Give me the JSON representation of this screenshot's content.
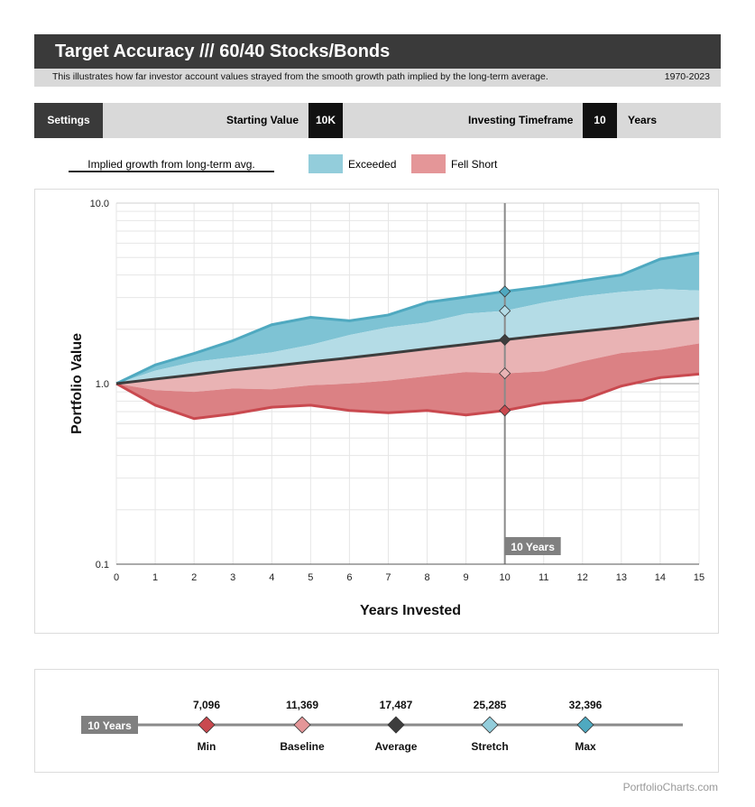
{
  "header": {
    "title": "Target Accuracy /// 60/40 Stocks/Bonds",
    "description": "This illustrates how far investor account values strayed from the smooth growth path implied by the long-term average.",
    "date_range": "1970-2023"
  },
  "settings": {
    "button_label": "Settings",
    "starting_value_label": "Starting Value",
    "starting_value": "10K",
    "timeframe_label": "Investing Timeframe",
    "timeframe_value": "10",
    "timeframe_unit": "Years"
  },
  "legend": {
    "line_label": "Implied growth from long-term avg.",
    "exceeded_label": "Exceeded",
    "fell_short_label": "Fell Short"
  },
  "colors": {
    "exceeded": "#93cddb",
    "fell_short": "#e49698",
    "max_fill": "#7ec3d4",
    "stretch_fill": "#b4dce6",
    "baseline_fill": "#e9b3b4",
    "min_fill": "#db8184",
    "max_line": "#4fa9c0",
    "min_line": "#c9494f",
    "average_line": "#3d3d3d",
    "marker_line": "#8a8a8a"
  },
  "chart_data": {
    "type": "area",
    "title": "",
    "xlabel": "Years Invested",
    "ylabel": "Portfolio Value",
    "yscale": "log",
    "ylim": [
      0.1,
      10.0
    ],
    "y_ticks": [
      "10.0",
      "1.0",
      "0.1"
    ],
    "x": [
      0,
      1,
      2,
      3,
      4,
      5,
      6,
      7,
      8,
      9,
      10,
      11,
      12,
      13,
      14,
      15
    ],
    "series": [
      {
        "name": "Max",
        "values": [
          1.0,
          1.27,
          1.47,
          1.73,
          2.12,
          2.33,
          2.23,
          2.4,
          2.82,
          3.02,
          3.24,
          3.45,
          3.72,
          4.0,
          4.9,
          5.3
        ]
      },
      {
        "name": "Stretch",
        "values": [
          1.0,
          1.18,
          1.32,
          1.4,
          1.49,
          1.64,
          1.86,
          2.05,
          2.18,
          2.44,
          2.53,
          2.81,
          3.05,
          3.22,
          3.34,
          3.28
        ]
      },
      {
        "name": "Average",
        "values": [
          1.0,
          1.06,
          1.12,
          1.19,
          1.25,
          1.32,
          1.39,
          1.47,
          1.56,
          1.65,
          1.75,
          1.85,
          1.95,
          2.05,
          2.18,
          2.3
        ]
      },
      {
        "name": "Baseline",
        "values": [
          1.0,
          0.92,
          0.9,
          0.94,
          0.93,
          0.98,
          1.0,
          1.04,
          1.1,
          1.16,
          1.14,
          1.17,
          1.33,
          1.48,
          1.54,
          1.67
        ]
      },
      {
        "name": "Min",
        "values": [
          1.0,
          0.76,
          0.64,
          0.68,
          0.74,
          0.76,
          0.71,
          0.69,
          0.71,
          0.67,
          0.71,
          0.78,
          0.81,
          0.97,
          1.08,
          1.13
        ]
      }
    ],
    "marker": {
      "x": 10,
      "label": "10 Years"
    },
    "grid": true,
    "legend_position": "top"
  },
  "summary": {
    "timeframe_label": "10 Years",
    "points": [
      {
        "name": "Min",
        "value": "7,096",
        "color": "#c9494f"
      },
      {
        "name": "Baseline",
        "value": "11,369",
        "color": "#e49698"
      },
      {
        "name": "Average",
        "value": "17,487",
        "color": "#3d3d3d"
      },
      {
        "name": "Stretch",
        "value": "25,285",
        "color": "#93cddb"
      },
      {
        "name": "Max",
        "value": "32,396",
        "color": "#4fa9c0"
      }
    ]
  },
  "footer": {
    "source": "PortfolioCharts.com"
  }
}
